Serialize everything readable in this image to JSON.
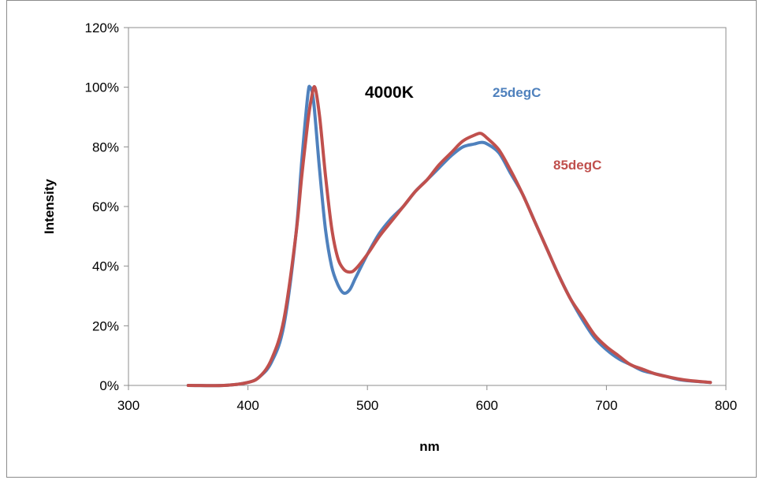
{
  "chart_data": {
    "type": "line",
    "title": "",
    "xlabel": "nm",
    "ylabel": "Intensity",
    "xlim": [
      300,
      800
    ],
    "ylim": [
      0,
      1.2
    ],
    "x_ticks": [
      300,
      400,
      500,
      600,
      700,
      800
    ],
    "y_ticks": [
      0,
      0.2,
      0.4,
      0.6,
      0.8,
      1.0,
      1.2
    ],
    "x_tick_labels": [
      "300",
      "400",
      "500",
      "600",
      "700",
      "800"
    ],
    "y_tick_labels": [
      "0%",
      "20%",
      "40%",
      "60%",
      "80%",
      "100%",
      "120%"
    ],
    "grid": false,
    "annotations": [
      {
        "text": "4000K",
        "role": "main",
        "color": "#000000"
      },
      {
        "text": "25degC",
        "role": "series-25",
        "color": "#4f81bd"
      },
      {
        "text": "85degC",
        "role": "series-85",
        "color": "#c0504d"
      }
    ],
    "series": [
      {
        "name": "25degC",
        "color": "#4f81bd",
        "points": [
          [
            350,
            0.0
          ],
          [
            380,
            0.0
          ],
          [
            400,
            0.01
          ],
          [
            410,
            0.03
          ],
          [
            420,
            0.08
          ],
          [
            430,
            0.2
          ],
          [
            440,
            0.5
          ],
          [
            445,
            0.75
          ],
          [
            450,
            0.97
          ],
          [
            452,
            1.0
          ],
          [
            455,
            0.95
          ],
          [
            460,
            0.72
          ],
          [
            465,
            0.52
          ],
          [
            470,
            0.4
          ],
          [
            475,
            0.34
          ],
          [
            480,
            0.31
          ],
          [
            485,
            0.32
          ],
          [
            490,
            0.36
          ],
          [
            500,
            0.44
          ],
          [
            510,
            0.51
          ],
          [
            520,
            0.56
          ],
          [
            530,
            0.6
          ],
          [
            540,
            0.65
          ],
          [
            550,
            0.69
          ],
          [
            560,
            0.73
          ],
          [
            570,
            0.77
          ],
          [
            580,
            0.8
          ],
          [
            590,
            0.81
          ],
          [
            595,
            0.815
          ],
          [
            600,
            0.81
          ],
          [
            610,
            0.78
          ],
          [
            620,
            0.71
          ],
          [
            630,
            0.64
          ],
          [
            640,
            0.55
          ],
          [
            650,
            0.46
          ],
          [
            660,
            0.37
          ],
          [
            670,
            0.29
          ],
          [
            680,
            0.22
          ],
          [
            690,
            0.16
          ],
          [
            700,
            0.12
          ],
          [
            710,
            0.09
          ],
          [
            720,
            0.07
          ],
          [
            730,
            0.05
          ],
          [
            740,
            0.04
          ],
          [
            750,
            0.03
          ],
          [
            760,
            0.02
          ],
          [
            770,
            0.015
          ],
          [
            787,
            0.01
          ]
        ]
      },
      {
        "name": "85degC",
        "color": "#c0504d",
        "points": [
          [
            350,
            0.0
          ],
          [
            380,
            0.0
          ],
          [
            400,
            0.01
          ],
          [
            410,
            0.03
          ],
          [
            420,
            0.09
          ],
          [
            430,
            0.22
          ],
          [
            440,
            0.5
          ],
          [
            445,
            0.7
          ],
          [
            450,
            0.88
          ],
          [
            453,
            0.96
          ],
          [
            456,
            1.0
          ],
          [
            460,
            0.9
          ],
          [
            465,
            0.7
          ],
          [
            470,
            0.53
          ],
          [
            475,
            0.43
          ],
          [
            480,
            0.39
          ],
          [
            485,
            0.38
          ],
          [
            490,
            0.39
          ],
          [
            500,
            0.44
          ],
          [
            510,
            0.5
          ],
          [
            520,
            0.55
          ],
          [
            530,
            0.6
          ],
          [
            540,
            0.65
          ],
          [
            550,
            0.69
          ],
          [
            560,
            0.74
          ],
          [
            570,
            0.78
          ],
          [
            580,
            0.82
          ],
          [
            590,
            0.84
          ],
          [
            595,
            0.845
          ],
          [
            600,
            0.83
          ],
          [
            610,
            0.79
          ],
          [
            620,
            0.72
          ],
          [
            630,
            0.64
          ],
          [
            640,
            0.55
          ],
          [
            650,
            0.46
          ],
          [
            660,
            0.37
          ],
          [
            670,
            0.29
          ],
          [
            680,
            0.23
          ],
          [
            690,
            0.17
          ],
          [
            700,
            0.13
          ],
          [
            710,
            0.1
          ],
          [
            720,
            0.07
          ],
          [
            730,
            0.055
          ],
          [
            740,
            0.04
          ],
          [
            750,
            0.03
          ],
          [
            760,
            0.022
          ],
          [
            770,
            0.016
          ],
          [
            787,
            0.01
          ]
        ]
      }
    ]
  }
}
